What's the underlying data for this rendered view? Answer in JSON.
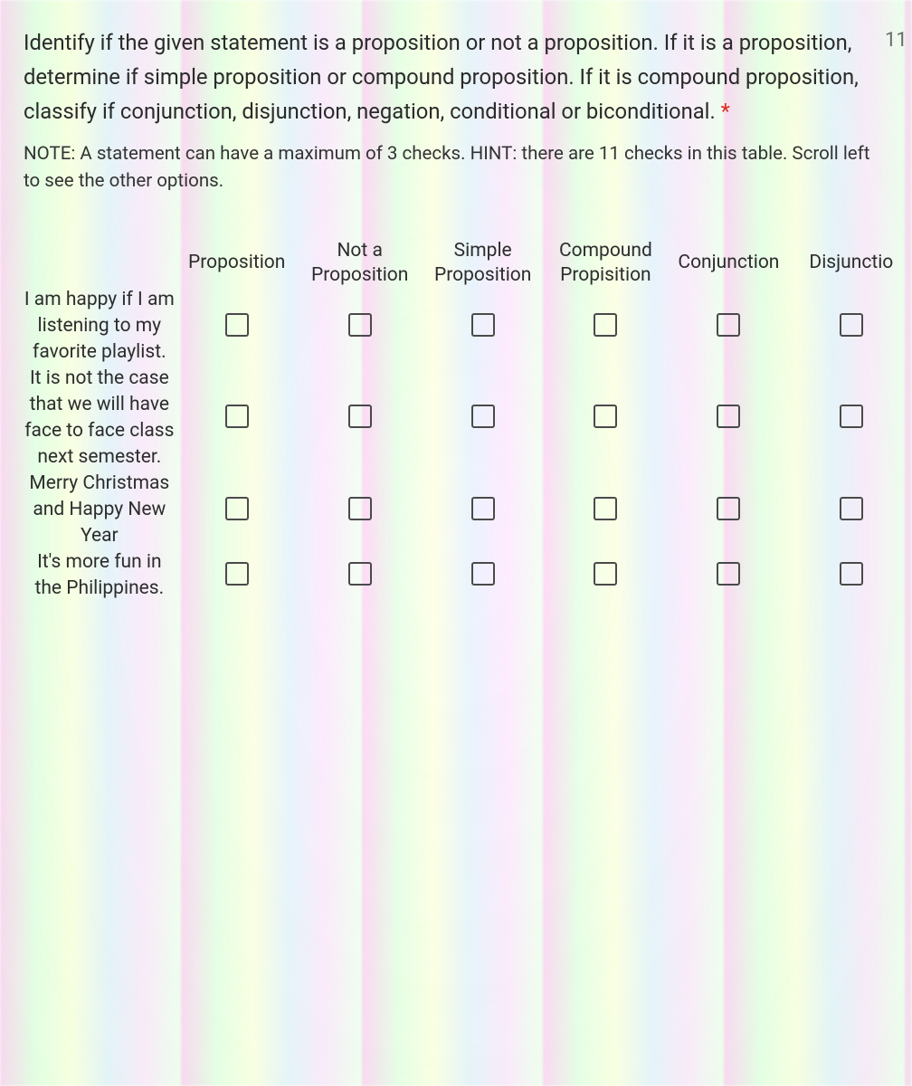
{
  "question": {
    "title": "Identify if the given statement is a proposition or not a proposition. If it is a proposition, determine if simple proposition or compound proposition. If it is compound proposition, classify if conjunction, disjunction, negation, conditional or biconditional.",
    "required_marker": "*",
    "points_label": "11",
    "note": "NOTE: A statement can have a maximum of 3 checks. HINT: there are 11 checks in this table. Scroll left to see the other options."
  },
  "columns": [
    "Proposition",
    "Not a Proposition",
    "Simple Proposition",
    "Compound Propisition",
    "Conjunction",
    "Disjunctio"
  ],
  "rows": [
    {
      "statement": "I am happy if I am listening to my favorite playlist."
    },
    {
      "statement": "It is not the case that we will have face to face class next semester."
    },
    {
      "statement": "Merry Christmas and Happy New Year"
    },
    {
      "statement": "It's more fun in the Philippines."
    }
  ],
  "colors": {
    "text": "#2a2a2a",
    "note_text": "#333333",
    "checkbox_border": "#4a4a4a",
    "required": "#d93025"
  }
}
